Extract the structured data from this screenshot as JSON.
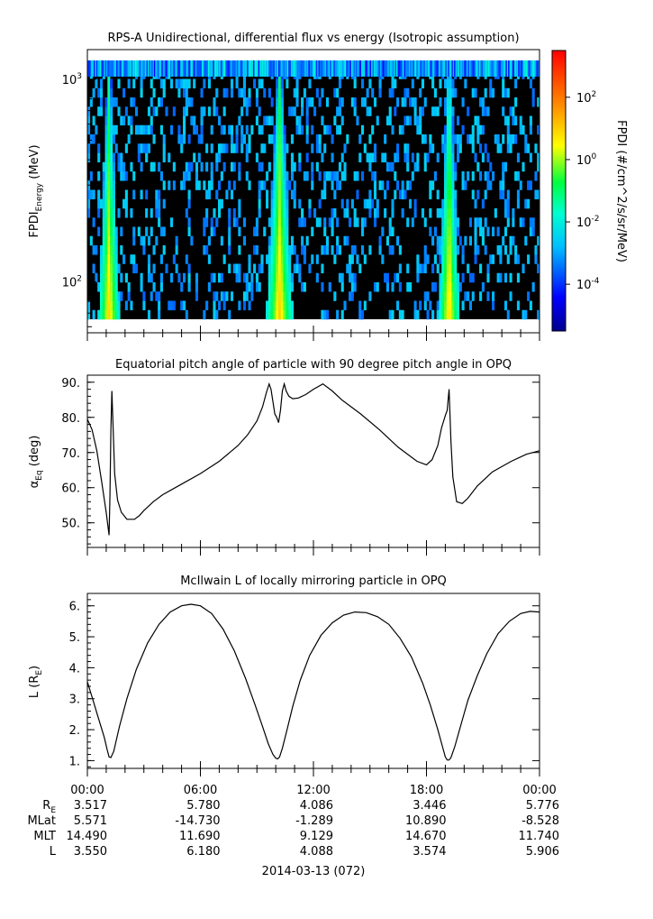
{
  "chart_data": [
    {
      "type": "heatmap",
      "title": "RPS-A Unidirectional, differential flux vs energy (Isotropic assumption)",
      "ylabel_main": "FPDI",
      "ylabel_sub": "Energy",
      "ylabel_unit": "(MeV)",
      "yscale": "log",
      "ylim": [
        56,
        1400
      ],
      "yticks": [
        {
          "value": 100,
          "base": "10",
          "exp": "2"
        },
        {
          "value": 1000,
          "base": "10",
          "exp": "3"
        }
      ],
      "colorbar": {
        "label": "FPDI (#/cm^2/s/sr/MeV)",
        "scale": "log",
        "range_log10": [
          -5.5,
          3.5
        ],
        "ticks": [
          {
            "log10": 2,
            "base": "10",
            "exp": "2"
          },
          {
            "log10": 0,
            "base": "10",
            "exp": "0"
          },
          {
            "log10": -2,
            "base": "10",
            "exp": "-2"
          },
          {
            "log10": -4,
            "base": "10",
            "exp": "-4"
          }
        ]
      },
      "hour_range": [
        0,
        24
      ],
      "bright_passes": [
        {
          "center_hour": 1.15,
          "width_hour": 0.55,
          "peak_log10": 1.0
        },
        {
          "center_hour": 10.2,
          "width_hour": 0.7,
          "peak_log10": 1.0
        },
        {
          "center_hour": 19.2,
          "width_hour": 0.55,
          "peak_log10": 1.0
        }
      ]
    },
    {
      "type": "line",
      "title": "Equatorial pitch angle of particle with 90 degree pitch angle in OPQ",
      "ylabel_main": "α",
      "ylabel_sub": "Eq",
      "ylabel_unit": "(deg)",
      "ylim": [
        43,
        92
      ],
      "yticks": [
        "50.",
        "60.",
        "70.",
        "80.",
        "90."
      ],
      "x": [
        0,
        0.25,
        0.5,
        0.75,
        1.0,
        1.15,
        1.2,
        1.25,
        1.3,
        1.35,
        1.45,
        1.6,
        1.8,
        2.1,
        2.5,
        2.75,
        3.0,
        3.5,
        4.0,
        5.0,
        6.0,
        7.0,
        8.0,
        8.5,
        9.0,
        9.3,
        9.5,
        9.65,
        9.75,
        9.85,
        9.95,
        10.05,
        10.15,
        10.25,
        10.35,
        10.45,
        10.55,
        10.7,
        10.9,
        11.2,
        11.6,
        12.0,
        12.5,
        13.0,
        13.5,
        14.5,
        15.5,
        16.5,
        17.5,
        18.0,
        18.3,
        18.6,
        18.8,
        19.0,
        19.1,
        19.2,
        19.3,
        19.4,
        19.6,
        19.9,
        20.2,
        20.7,
        21.5,
        22.5,
        23.3,
        24.0
      ],
      "y": [
        79.5,
        76.5,
        70.5,
        62.0,
        53.0,
        46.5,
        58.0,
        76.0,
        87.5,
        80.0,
        64.0,
        56.5,
        53.0,
        51.0,
        51.0,
        52.0,
        53.5,
        56.0,
        58.0,
        61.0,
        64.0,
        67.5,
        72.0,
        75.0,
        79.0,
        83.0,
        87.0,
        89.5,
        88.0,
        84.5,
        81.0,
        80.0,
        78.5,
        82.0,
        87.5,
        89.5,
        87.5,
        86.0,
        85.3,
        85.5,
        86.5,
        88.0,
        89.5,
        87.5,
        85.0,
        81.0,
        76.5,
        71.5,
        67.5,
        66.5,
        68.0,
        72.0,
        77.0,
        80.5,
        82.0,
        88.0,
        73.0,
        63.0,
        56.0,
        55.5,
        57.0,
        60.5,
        64.5,
        67.5,
        69.5,
        70.5
      ]
    },
    {
      "type": "line",
      "title": "McIlwain L of locally mirroring particle in OPQ",
      "ylabel_main": "L (R",
      "ylabel_sub": "E",
      "ylabel_unit": ")",
      "ylim": [
        0.75,
        6.4
      ],
      "yticks": [
        "1.",
        "2.",
        "3.",
        "4.",
        "5.",
        "6."
      ],
      "x": [
        0,
        0.3,
        0.6,
        0.9,
        1.05,
        1.15,
        1.25,
        1.4,
        1.7,
        2.1,
        2.6,
        3.2,
        3.8,
        4.4,
        5.0,
        5.5,
        6.0,
        6.6,
        7.2,
        7.8,
        8.4,
        8.9,
        9.3,
        9.6,
        9.85,
        10.0,
        10.1,
        10.2,
        10.35,
        10.6,
        10.9,
        11.3,
        11.8,
        12.4,
        13.0,
        13.6,
        14.2,
        14.8,
        15.4,
        16.0,
        16.6,
        17.2,
        17.8,
        18.2,
        18.6,
        18.85,
        19.0,
        19.1,
        19.2,
        19.3,
        19.5,
        19.8,
        20.2,
        20.7,
        21.2,
        21.8,
        22.4,
        23.0,
        23.5,
        24.0
      ],
      "y": [
        3.55,
        2.95,
        2.35,
        1.75,
        1.35,
        1.12,
        1.1,
        1.3,
        2.1,
        3.0,
        3.95,
        4.8,
        5.4,
        5.8,
        6.0,
        6.05,
        6.0,
        5.75,
        5.25,
        4.55,
        3.65,
        2.8,
        2.1,
        1.55,
        1.2,
        1.08,
        1.06,
        1.12,
        1.4,
        2.0,
        2.75,
        3.6,
        4.4,
        5.05,
        5.45,
        5.7,
        5.8,
        5.78,
        5.65,
        5.4,
        4.95,
        4.35,
        3.5,
        2.8,
        2.0,
        1.45,
        1.12,
        1.02,
        1.02,
        1.1,
        1.45,
        2.1,
        2.95,
        3.75,
        4.45,
        5.1,
        5.5,
        5.75,
        5.82,
        5.8
      ]
    }
  ],
  "x_axis": {
    "ticks": [
      "00:00",
      "06:00",
      "12:00",
      "18:00",
      "00:00"
    ],
    "minor_per_major": 6
  },
  "ephemeris": {
    "row_labels": [
      {
        "main": "R",
        "sub": "E"
      },
      {
        "main": "MLat",
        "sub": ""
      },
      {
        "main": "MLT",
        "sub": ""
      },
      {
        "main": "L",
        "sub": ""
      }
    ],
    "rows": [
      [
        "3.517",
        "5.780",
        "4.086",
        "3.446",
        "5.776"
      ],
      [
        "5.571",
        "-14.730",
        "-1.289",
        "10.890",
        "-8.528"
      ],
      [
        "14.490",
        "11.690",
        "9.129",
        "14.670",
        "11.740"
      ],
      [
        "3.550",
        "6.180",
        "4.088",
        "3.574",
        "5.906"
      ]
    ]
  },
  "date_label": "2014-03-13 (072)",
  "colors": {
    "line": "#000000",
    "background_bin": "#000000"
  }
}
